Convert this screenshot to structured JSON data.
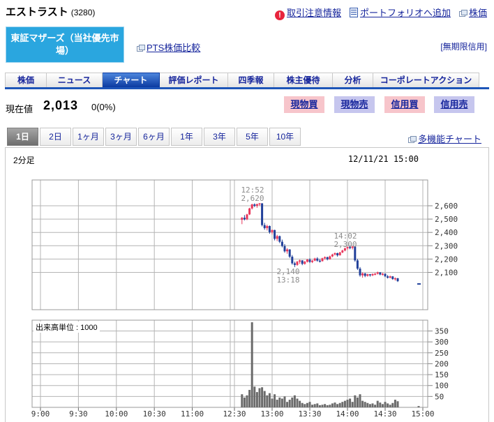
{
  "header": {
    "title": "エストラスト",
    "code": "(3280)",
    "links": [
      {
        "label": "取引注意情報",
        "icon": "alert-icon"
      },
      {
        "label": "ポートフォリオへ追加",
        "icon": "document-icon"
      },
      {
        "label": "株価",
        "icon": "external-window-icon"
      }
    ],
    "market_badge": "東証マザーズ（当社優先市場）",
    "pts_label": "PTS株価比較",
    "credit_label": "[無期限信用]"
  },
  "tabs": {
    "items": [
      "株価",
      "ニュース",
      "チャート",
      "評価レポート",
      "四季報",
      "株主優待",
      "分析",
      "コーポレートアクション"
    ],
    "active": "チャート"
  },
  "quote": {
    "label": "現在値",
    "price": "2,013",
    "change": "0(0%)"
  },
  "trade_buttons": [
    {
      "label": "現物買",
      "variant": "buy"
    },
    {
      "label": "現物売",
      "variant": "sell"
    },
    {
      "label": "信用買",
      "variant": "buy"
    },
    {
      "label": "信用売",
      "variant": "sell"
    }
  ],
  "period_tabs": {
    "items": [
      "1日",
      "2日",
      "1ヶ月",
      "3ヶ月",
      "6ヶ月",
      "1年",
      "3年",
      "5年",
      "10年"
    ],
    "active": "1日"
  },
  "chart_header": {
    "interval": "2分足",
    "timestamp": "12/11/21 15:00",
    "multi_chart_link": "多機能チャート",
    "volume_unit_label": "出来高単位 : 1000"
  },
  "chart_data": {
    "type": "candlestick_with_volume",
    "interval": "2min",
    "price_axis": {
      "ticks": [
        2600,
        2500,
        2400,
        2300,
        2200,
        2100
      ],
      "labels": [
        "2,600",
        "2,500",
        "2,400",
        "2,300",
        "2,200",
        "2,100"
      ],
      "side": "right"
    },
    "volume_axis": {
      "ticks": [
        350,
        300,
        250,
        200,
        150,
        100,
        50
      ],
      "side": "right"
    },
    "time_axis": {
      "labels": [
        "9:00",
        "9:30",
        "10:00",
        "10:30",
        "11:00",
        "12:30",
        "13:00",
        "13:30",
        "14:00",
        "14:30",
        "15:00"
      ],
      "morning_session": [
        "9:00",
        "11:30"
      ],
      "afternoon_session": [
        "12:30",
        "15:00"
      ],
      "session_break_double_line": true
    },
    "annotations": [
      {
        "lines": [
          "12:52",
          "2,620"
        ],
        "kind": "high",
        "time": "12:52",
        "price": 2620
      },
      {
        "lines": [
          "14:02",
          "2,300"
        ],
        "kind": "high",
        "time": "14:02",
        "price": 2300
      },
      {
        "lines": [
          "2,140",
          "13:18"
        ],
        "kind": "low",
        "time": "13:18",
        "price": 2140
      }
    ],
    "candles_format": [
      "time",
      "open",
      "high",
      "low",
      "close",
      "volume_k"
    ],
    "candles": [
      [
        "12:36",
        2495,
        2515,
        2462,
        2510,
        60
      ],
      [
        "12:38",
        2510,
        2530,
        2490,
        2498,
        45
      ],
      [
        "12:40",
        2498,
        2540,
        2492,
        2535,
        55
      ],
      [
        "12:42",
        2535,
        2585,
        2530,
        2580,
        80
      ],
      [
        "12:44",
        2580,
        2615,
        2572,
        2610,
        390
      ],
      [
        "12:46",
        2610,
        2618,
        2590,
        2600,
        95
      ],
      [
        "12:48",
        2600,
        2616,
        2585,
        2612,
        70
      ],
      [
        "12:50",
        2612,
        2620,
        2598,
        2618,
        88
      ],
      [
        "12:52",
        2618,
        2620,
        2445,
        2455,
        92
      ],
      [
        "12:54",
        2455,
        2472,
        2420,
        2432,
        75
      ],
      [
        "12:56",
        2432,
        2458,
        2415,
        2448,
        55
      ],
      [
        "12:58",
        2448,
        2452,
        2390,
        2402,
        65
      ],
      [
        "13:00",
        2402,
        2422,
        2385,
        2418,
        40
      ],
      [
        "13:02",
        2418,
        2420,
        2340,
        2352,
        60
      ],
      [
        "13:04",
        2352,
        2382,
        2335,
        2372,
        35
      ],
      [
        "13:06",
        2372,
        2376,
        2320,
        2330,
        45
      ],
      [
        "13:08",
        2330,
        2346,
        2288,
        2298,
        40
      ],
      [
        "13:10",
        2298,
        2312,
        2248,
        2258,
        50
      ],
      [
        "13:12",
        2258,
        2282,
        2240,
        2272,
        25
      ],
      [
        "13:14",
        2272,
        2274,
        2208,
        2218,
        35
      ],
      [
        "13:16",
        2218,
        2230,
        2158,
        2168,
        45
      ],
      [
        "13:18",
        2168,
        2180,
        2140,
        2156,
        55
      ],
      [
        "13:20",
        2156,
        2186,
        2150,
        2180,
        40
      ],
      [
        "13:22",
        2180,
        2196,
        2164,
        2190,
        30
      ],
      [
        "13:24",
        2190,
        2192,
        2154,
        2164,
        20
      ],
      [
        "13:26",
        2164,
        2186,
        2158,
        2180,
        15
      ],
      [
        "13:28",
        2180,
        2200,
        2174,
        2196,
        20
      ],
      [
        "13:30",
        2196,
        2206,
        2170,
        2178,
        25
      ],
      [
        "13:32",
        2178,
        2194,
        2170,
        2188,
        12
      ],
      [
        "13:34",
        2188,
        2210,
        2184,
        2204,
        15
      ],
      [
        "13:36",
        2204,
        2214,
        2180,
        2188,
        18
      ],
      [
        "13:38",
        2188,
        2200,
        2174,
        2184,
        10
      ],
      [
        "13:40",
        2184,
        2210,
        2182,
        2206,
        12
      ],
      [
        "13:42",
        2206,
        2220,
        2196,
        2214,
        15
      ],
      [
        "13:44",
        2214,
        2218,
        2190,
        2198,
        10
      ],
      [
        "13:46",
        2198,
        2226,
        2196,
        2220,
        12
      ],
      [
        "13:48",
        2220,
        2240,
        2214,
        2234,
        18
      ],
      [
        "13:50",
        2234,
        2250,
        2226,
        2244,
        22
      ],
      [
        "13:52",
        2244,
        2248,
        2218,
        2228,
        15
      ],
      [
        "13:54",
        2228,
        2254,
        2226,
        2250,
        20
      ],
      [
        "13:56",
        2250,
        2270,
        2244,
        2264,
        25
      ],
      [
        "13:58",
        2264,
        2286,
        2258,
        2280,
        30
      ],
      [
        "14:00",
        2280,
        2296,
        2268,
        2290,
        35
      ],
      [
        "14:02",
        2290,
        2300,
        2274,
        2284,
        40
      ],
      [
        "14:04",
        2284,
        2298,
        2272,
        2294,
        25
      ],
      [
        "14:06",
        2294,
        2296,
        2180,
        2190,
        55
      ],
      [
        "14:08",
        2190,
        2202,
        2118,
        2128,
        45
      ],
      [
        "14:10",
        2128,
        2140,
        2068,
        2078,
        60
      ],
      [
        "14:12",
        2078,
        2100,
        2060,
        2092,
        30
      ],
      [
        "14:14",
        2092,
        2096,
        2064,
        2074,
        25
      ],
      [
        "14:16",
        2074,
        2090,
        2068,
        2086,
        20
      ],
      [
        "14:18",
        2086,
        2088,
        2068,
        2078,
        15
      ],
      [
        "14:20",
        2078,
        2092,
        2072,
        2088,
        18
      ],
      [
        "14:22",
        2088,
        2096,
        2078,
        2090,
        12
      ],
      [
        "14:24",
        2090,
        2106,
        2084,
        2100,
        30
      ],
      [
        "14:26",
        2100,
        2102,
        2078,
        2084,
        22
      ],
      [
        "14:28",
        2084,
        2096,
        2076,
        2090,
        15
      ],
      [
        "14:30",
        2090,
        2092,
        2064,
        2070,
        25
      ],
      [
        "14:32",
        2070,
        2080,
        2054,
        2060,
        18
      ],
      [
        "14:34",
        2060,
        2076,
        2056,
        2070,
        12
      ],
      [
        "14:36",
        2070,
        2072,
        2044,
        2050,
        20
      ],
      [
        "14:38",
        2050,
        2062,
        2038,
        2056,
        35
      ],
      [
        "14:40",
        2056,
        2058,
        2028,
        2034,
        28
      ],
      [
        "15:00",
        2013,
        2013,
        2013,
        2013,
        6
      ]
    ]
  },
  "colors": {
    "link_navy": "#16259c",
    "tab_active_top": "#4d86dc",
    "tab_active_bottom": "#0b3aa0",
    "tab_underline": "#1d55b8",
    "market_badge_bg": "#2aa6df",
    "buy_button_bg": "#f7c5cb",
    "sell_button_bg": "#c6c6ee",
    "candle_up": "#e8355a",
    "candle_down": "#21409a",
    "volume_bar": "#6b6b6b",
    "grid": "#b4b4b4",
    "annotation_text": "#8c8c8c",
    "alert_icon": "#e8243c"
  }
}
